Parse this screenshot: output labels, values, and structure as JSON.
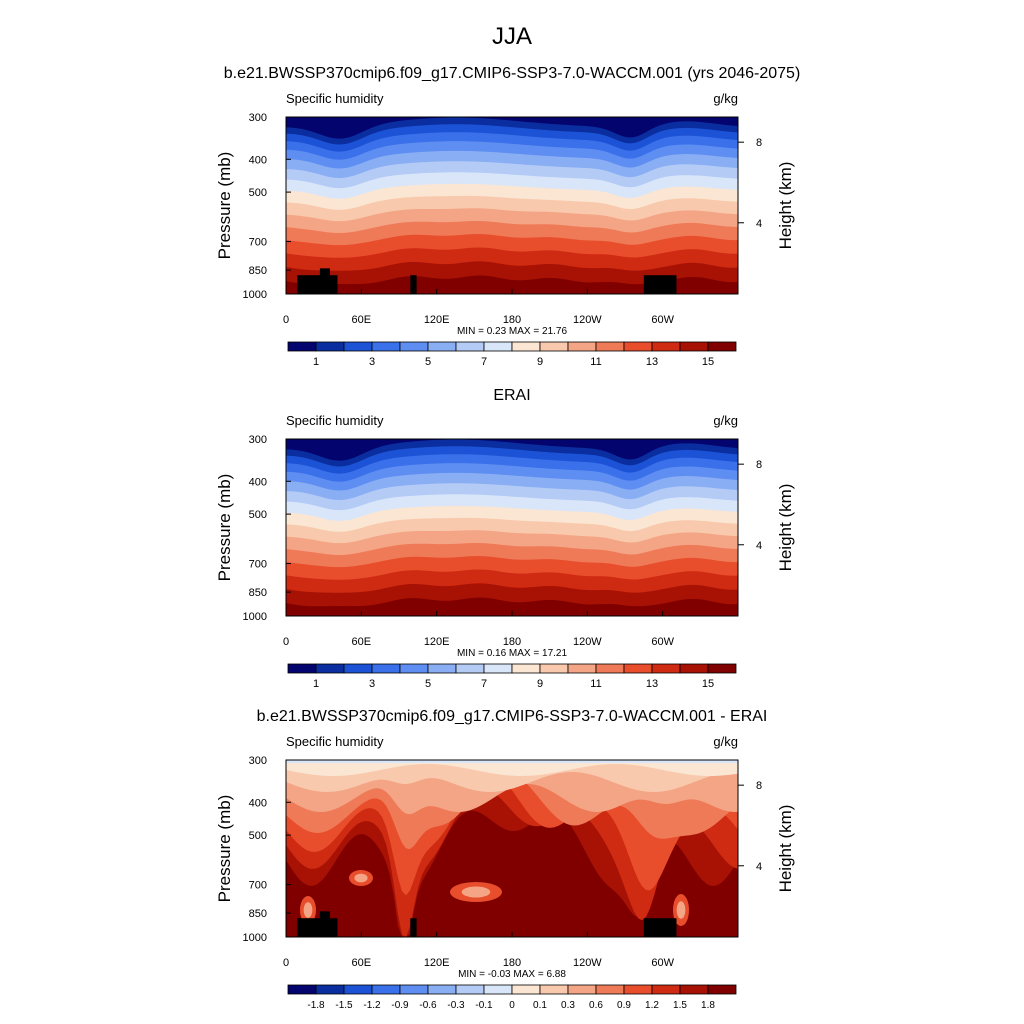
{
  "page": {
    "title": "JJA"
  },
  "colormap_abs": [
    "#04046e",
    "#0a2ea0",
    "#1c53d6",
    "#3a70ea",
    "#5f8ef2",
    "#8aaef4",
    "#b4cbf6",
    "#d9e6fa",
    "#fae6d2",
    "#f8c9ad",
    "#f4a585",
    "#ef7a58",
    "#e84d2c",
    "#cf2a12",
    "#a81205",
    "#800000"
  ],
  "colormap_diff": [
    "#04046e",
    "#0a2ea0",
    "#1c53d6",
    "#3a70ea",
    "#5f8ef2",
    "#8aaef4",
    "#b4cbf6",
    "#d9e6fa",
    "#fae6d2",
    "#f8c9ad",
    "#f4a585",
    "#ef7a58",
    "#e84d2c",
    "#cf2a12",
    "#a81205",
    "#800000"
  ],
  "chart_data": [
    {
      "type": "heatmap",
      "title": "b.e21.BWSSP370cmip6.f09_g17.CMIP6-SSP3-7.0-WACCM.001 (yrs 2046-2075)",
      "left_label": "Specific humidity",
      "right_label": "g/kg",
      "ylabel": "Pressure (mb)",
      "ylabel_right": "Height (km)",
      "x_ticks": [
        "0",
        "60E",
        "120E",
        "180",
        "120W",
        "60W"
      ],
      "x_tick_values": [
        0,
        60,
        120,
        180,
        240,
        300
      ],
      "xlim": [
        0,
        360
      ],
      "y_ticks": [
        "300",
        "400",
        "500",
        "700",
        "850",
        "1000"
      ],
      "y_tick_values": [
        300,
        400,
        500,
        700,
        850,
        1000
      ],
      "ylim": [
        1000,
        300
      ],
      "y_scale": "log",
      "right_ticks": [
        "8",
        "4"
      ],
      "stats": "MIN =   0.23  MAX =  21.76",
      "min": 0.23,
      "max": 21.76,
      "colorbar_labels": [
        "1",
        "3",
        "5",
        "7",
        "9",
        "11",
        "13",
        "15"
      ],
      "colorbar_levels": [
        1,
        2,
        3,
        4,
        5,
        6,
        7,
        8,
        9,
        10,
        11,
        12,
        13,
        14,
        15
      ],
      "topography_mask": true
    },
    {
      "type": "heatmap",
      "title": "ERAI",
      "left_label": "Specific humidity",
      "right_label": "g/kg",
      "ylabel": "Pressure (mb)",
      "ylabel_right": "Height (km)",
      "x_ticks": [
        "0",
        "60E",
        "120E",
        "180",
        "120W",
        "60W"
      ],
      "x_tick_values": [
        0,
        60,
        120,
        180,
        240,
        300
      ],
      "xlim": [
        0,
        360
      ],
      "y_ticks": [
        "300",
        "400",
        "500",
        "700",
        "850",
        "1000"
      ],
      "y_tick_values": [
        300,
        400,
        500,
        700,
        850,
        1000
      ],
      "ylim": [
        1000,
        300
      ],
      "y_scale": "log",
      "right_ticks": [
        "8",
        "4"
      ],
      "stats": "MIN =   0.16  MAX =  17.21",
      "min": 0.16,
      "max": 17.21,
      "colorbar_labels": [
        "1",
        "3",
        "5",
        "7",
        "9",
        "11",
        "13",
        "15"
      ],
      "colorbar_levels": [
        1,
        2,
        3,
        4,
        5,
        6,
        7,
        8,
        9,
        10,
        11,
        12,
        13,
        14,
        15
      ],
      "topography_mask": false
    },
    {
      "type": "heatmap",
      "title": "b.e21.BWSSP370cmip6.f09_g17.CMIP6-SSP3-7.0-WACCM.001 - ERAI",
      "left_label": "Specific humidity",
      "right_label": "g/kg",
      "ylabel": "Pressure (mb)",
      "ylabel_right": "Height (km)",
      "x_ticks": [
        "0",
        "60E",
        "120E",
        "180",
        "120W",
        "60W"
      ],
      "x_tick_values": [
        0,
        60,
        120,
        180,
        240,
        300
      ],
      "xlim": [
        0,
        360
      ],
      "y_ticks": [
        "300",
        "400",
        "500",
        "700",
        "850",
        "1000"
      ],
      "y_tick_values": [
        300,
        400,
        500,
        700,
        850,
        1000
      ],
      "ylim": [
        1000,
        300
      ],
      "y_scale": "log",
      "right_ticks": [
        "8",
        "4"
      ],
      "stats": "MIN =  -0.03  MAX =   6.88",
      "min": -0.03,
      "max": 6.88,
      "colorbar_labels": [
        "-1.8",
        "-1.5",
        "-1.2",
        "-0.9",
        "-0.6",
        "-0.3",
        "-0.1",
        "0",
        "0.1",
        "0.3",
        "0.6",
        "0.9",
        "1.2",
        "1.5",
        "1.8"
      ],
      "colorbar_levels": [
        -1.8,
        -1.5,
        -1.2,
        -0.9,
        -0.6,
        -0.3,
        -0.1,
        0,
        0.1,
        0.3,
        0.6,
        0.9,
        1.2,
        1.5,
        1.8
      ],
      "topography_mask": true
    }
  ]
}
